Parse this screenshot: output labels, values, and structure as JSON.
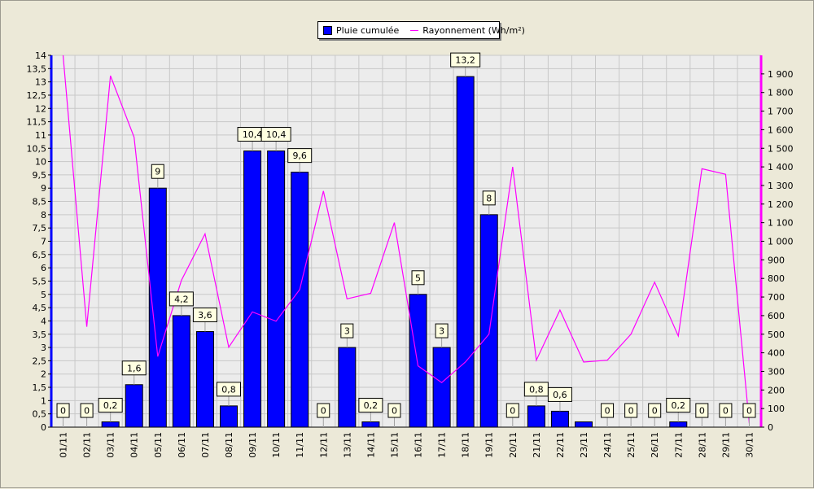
{
  "chart_data": {
    "type": "bar",
    "categories": [
      "01/11",
      "02/11",
      "03/11",
      "04/11",
      "05/11",
      "06/11",
      "07/11",
      "08/11",
      "09/11",
      "10/11",
      "11/11",
      "12/11",
      "13/11",
      "14/11",
      "15/11",
      "16/11",
      "17/11",
      "18/11",
      "19/11",
      "20/11",
      "21/11",
      "22/11",
      "23/11",
      "24/11",
      "25/11",
      "26/11",
      "27/11",
      "28/11",
      "29/11",
      "30/11"
    ],
    "series": [
      {
        "name": "Pluie cumulée",
        "type": "bar",
        "axis": "left",
        "color": "#0000ff",
        "values": [
          0,
          0,
          0.2,
          1.6,
          9,
          4.2,
          3.6,
          0.8,
          10.4,
          10.4,
          9.6,
          0,
          3,
          0.2,
          0,
          5,
          3,
          13.2,
          8,
          0,
          0.8,
          0.6,
          0.2,
          0,
          0,
          0,
          0.2,
          0,
          0,
          0
        ],
        "data_labels": [
          "0",
          "0",
          "0,2",
          "1,6",
          "9",
          "4,2",
          "3,6",
          "0,8",
          "10,4",
          "10,4",
          "9,6",
          "0",
          "3",
          "0,2",
          "0",
          "5",
          "3",
          "13,2",
          "8",
          "0",
          "0,8",
          "0,6",
          "",
          "0",
          "0",
          "0",
          "0,2",
          "0",
          "0",
          "0"
        ]
      },
      {
        "name": "Rayonnement (Wh/m²)",
        "type": "line",
        "axis": "right",
        "color": "#ff00ff",
        "values": [
          2000,
          540,
          1890,
          1560,
          380,
          790,
          1040,
          430,
          620,
          570,
          740,
          1270,
          690,
          720,
          1100,
          330,
          240,
          350,
          500,
          1400,
          360,
          630,
          350,
          360,
          500,
          780,
          490,
          1390,
          1360,
          20
        ]
      }
    ],
    "y_left": {
      "ylim": [
        0,
        14
      ],
      "tick_labels": [
        "0",
        "0,5",
        "1",
        "1,5",
        "2",
        "2,5",
        "3",
        "3,5",
        "4",
        "4,5",
        "5",
        "5,5",
        "6",
        "6,5",
        "7",
        "7,5",
        "8",
        "8,5",
        "9",
        "9,5",
        "10",
        "10,5",
        "11",
        "11,5",
        "12",
        "12,5",
        "13",
        "13,5",
        "14"
      ]
    },
    "y_right": {
      "ylim": [
        0,
        2000
      ],
      "tick_labels": [
        "0",
        "100",
        "200",
        "300",
        "400",
        "500",
        "600",
        "700",
        "800",
        "900",
        "1 000",
        "1 100",
        "1 200",
        "1 300",
        "1 400",
        "1 500",
        "1 600",
        "1 700",
        "1 800",
        "1 900"
      ]
    },
    "grid": true,
    "legend_position": "top-center",
    "colors": {
      "background": "#ece9d8",
      "plot_background": "#ececec",
      "grid": "#c8c8c8",
      "left_axis": "#0000ff",
      "right_axis": "#ff00ff",
      "label_box": "#ffffe1"
    }
  }
}
